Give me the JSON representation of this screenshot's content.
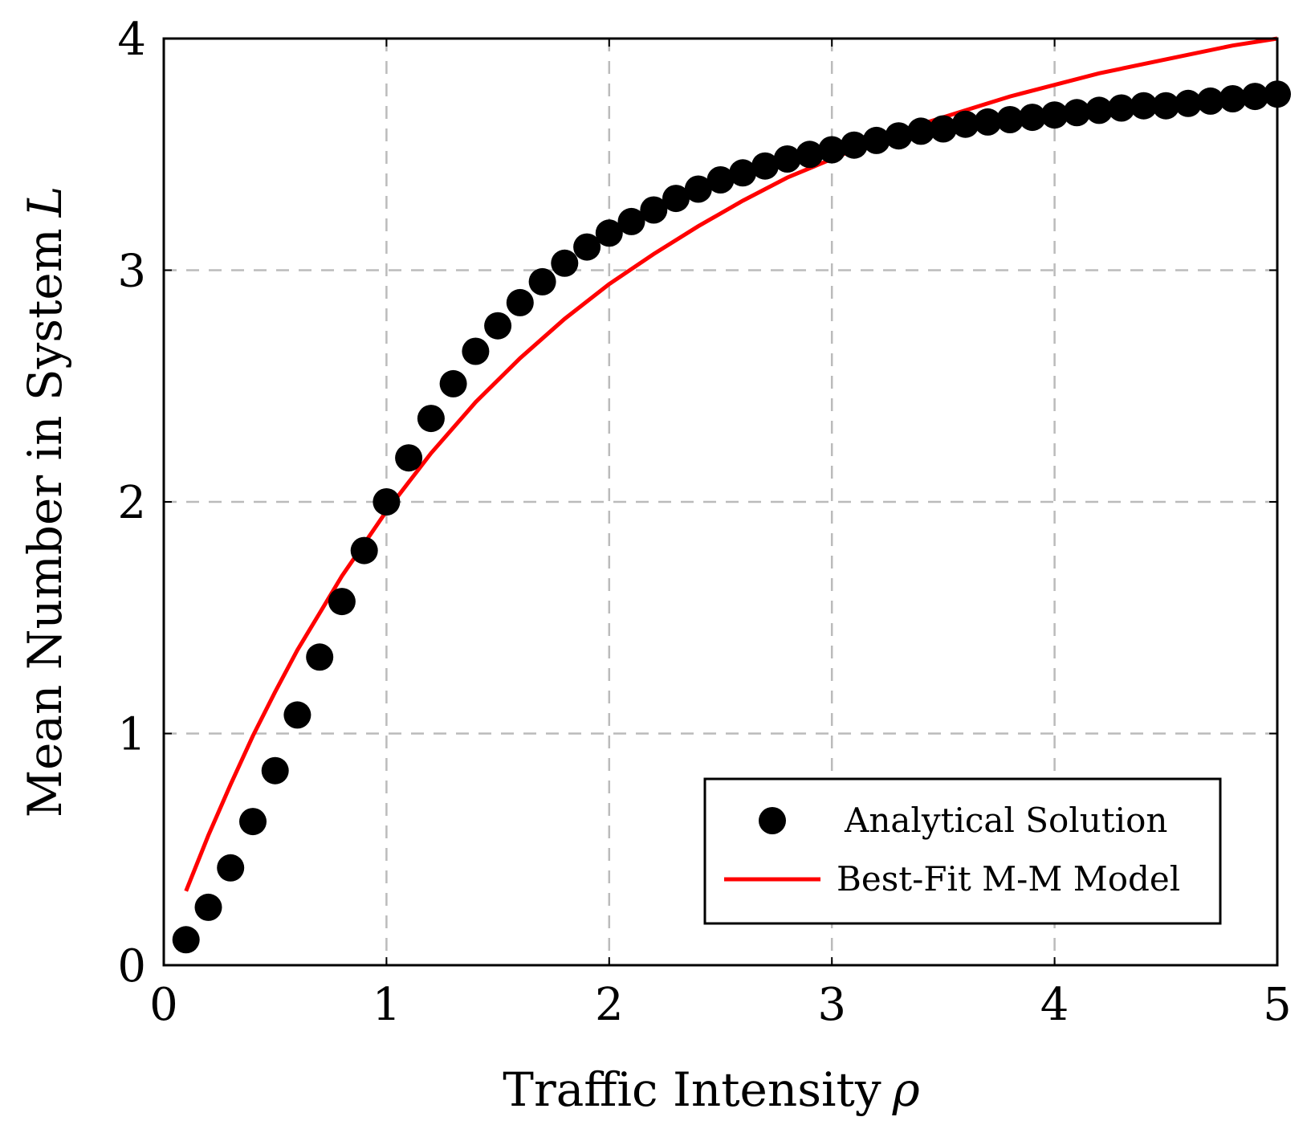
{
  "chart_data": {
    "type": "scatter",
    "xlabel": "Traffic Intensity",
    "xlabel_symbol": "ρ",
    "ylabel": "Mean Number in System",
    "ylabel_symbol": "L",
    "xlim": [
      0,
      5
    ],
    "ylim": [
      0,
      4
    ],
    "xticks": [
      0,
      1,
      2,
      3,
      4,
      5
    ],
    "yticks": [
      0,
      1,
      2,
      3,
      4
    ],
    "grid": true,
    "legend_position": "bottom-right",
    "colors": {
      "scatter": "#000000",
      "line": "#ff0000",
      "grid": "#bbbbbb"
    },
    "series": [
      {
        "name": "Analytical Solution",
        "type": "scatter",
        "x": [
          0.1,
          0.2,
          0.3,
          0.4,
          0.5,
          0.6,
          0.7,
          0.8,
          0.9,
          1.0,
          1.1,
          1.2,
          1.3,
          1.4,
          1.5,
          1.6,
          1.7,
          1.8,
          1.9,
          2.0,
          2.1,
          2.2,
          2.3,
          2.4,
          2.5,
          2.6,
          2.7,
          2.8,
          2.9,
          3.0,
          3.1,
          3.2,
          3.3,
          3.4,
          3.5,
          3.6,
          3.7,
          3.8,
          3.9,
          4.0,
          4.1,
          4.2,
          4.3,
          4.4,
          4.5,
          4.6,
          4.7,
          4.8,
          4.9,
          5.0
        ],
        "y": [
          0.11,
          0.25,
          0.42,
          0.62,
          0.84,
          1.08,
          1.33,
          1.57,
          1.79,
          2.0,
          2.19,
          2.36,
          2.51,
          2.65,
          2.76,
          2.86,
          2.95,
          3.03,
          3.1,
          3.16,
          3.21,
          3.26,
          3.31,
          3.35,
          3.39,
          3.42,
          3.45,
          3.48,
          3.5,
          3.52,
          3.54,
          3.56,
          3.58,
          3.6,
          3.61,
          3.63,
          3.64,
          3.65,
          3.66,
          3.67,
          3.68,
          3.69,
          3.7,
          3.71,
          3.71,
          3.72,
          3.73,
          3.74,
          3.75,
          3.76
        ]
      },
      {
        "name": "Best-Fit M-M Model",
        "type": "line",
        "x": [
          0.1,
          0.2,
          0.3,
          0.4,
          0.5,
          0.6,
          0.7,
          0.8,
          0.9,
          1.0,
          1.2,
          1.4,
          1.6,
          1.8,
          2.0,
          2.2,
          2.4,
          2.6,
          2.8,
          3.0,
          3.2,
          3.4,
          3.6,
          3.8,
          4.0,
          4.2,
          4.4,
          4.6,
          4.8,
          5.0
        ],
        "y": [
          0.32,
          0.56,
          0.78,
          0.99,
          1.18,
          1.36,
          1.52,
          1.68,
          1.82,
          1.96,
          2.21,
          2.43,
          2.62,
          2.79,
          2.94,
          3.07,
          3.19,
          3.3,
          3.4,
          3.48,
          3.56,
          3.63,
          3.69,
          3.75,
          3.8,
          3.85,
          3.89,
          3.93,
          3.97,
          4.0
        ]
      }
    ]
  }
}
